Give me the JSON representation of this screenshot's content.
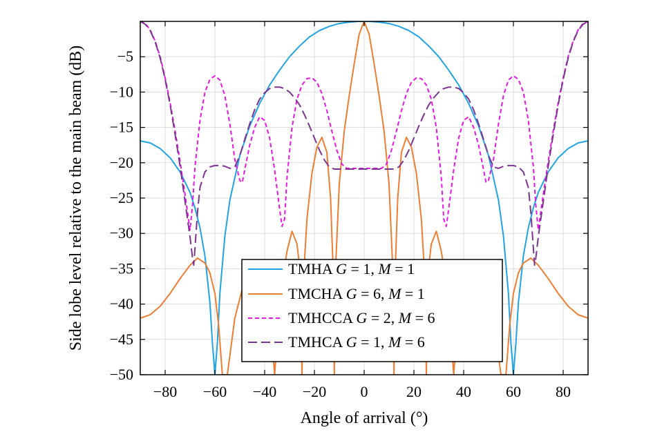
{
  "chart_data": {
    "type": "line",
    "title": "",
    "xlabel": "Angle of arrival (°)",
    "ylabel": "Side lobe level relative to the main beam (dB)",
    "xlim": [
      -90,
      90
    ],
    "ylim": [
      -50,
      0
    ],
    "xticks": [
      -80,
      -60,
      -40,
      -20,
      0,
      20,
      40,
      60,
      80
    ],
    "yticks": [
      -5,
      -10,
      -15,
      -20,
      -25,
      -30,
      -35,
      -40,
      -45,
      -50
    ],
    "xtick_labels": [
      "−80",
      "−60",
      "−40",
      "−20",
      "0",
      "20",
      "40",
      "60",
      "80"
    ],
    "ytick_labels": [
      "−5",
      "−10",
      "−15",
      "−20",
      "−25",
      "−30",
      "−35",
      "−40",
      "−45",
      "−50"
    ],
    "grid": true,
    "legend_position": "bottom-center",
    "series": [
      {
        "name": "TMHA G = 1, M = 1",
        "legend": {
          "prefix": "TMHA ",
          "g_label": "G",
          "g_value": " = 1, ",
          "m_label": "M",
          "m_value": " = 1"
        },
        "color": "#1fa3e6",
        "dash": "solid",
        "x": [
          -90,
          -86,
          -82,
          -78,
          -74,
          -70,
          -68,
          -66,
          -64,
          -62,
          -61,
          -60,
          -59,
          -58,
          -56,
          -54,
          -50,
          -46,
          -42,
          -38,
          -34,
          -30,
          -26,
          -22,
          -18,
          -14,
          -10,
          -6,
          -2,
          0,
          2,
          6,
          10,
          14,
          18,
          22,
          26,
          30,
          34,
          38,
          42,
          46,
          50,
          54,
          56,
          58,
          59,
          60,
          61,
          62,
          64,
          66,
          68,
          70,
          74,
          78,
          82,
          86,
          90
        ],
        "y": [
          -16.9,
          -17.2,
          -18.0,
          -19.3,
          -21.3,
          -24.2,
          -26.4,
          -29.2,
          -33.2,
          -39.8,
          -45.5,
          -50,
          -45.5,
          -38.5,
          -30.4,
          -25.3,
          -19.0,
          -14.8,
          -11.6,
          -9.0,
          -6.9,
          -5.0,
          -3.5,
          -2.2,
          -1.3,
          -0.7,
          -0.3,
          -0.1,
          0,
          0,
          0,
          -0.1,
          -0.3,
          -0.7,
          -1.3,
          -2.2,
          -3.5,
          -5.0,
          -6.9,
          -9.0,
          -11.6,
          -14.8,
          -19.0,
          -25.3,
          -30.4,
          -38.5,
          -45.5,
          -50,
          -45.5,
          -39.8,
          -33.2,
          -29.2,
          -26.4,
          -24.2,
          -21.3,
          -19.3,
          -18.0,
          -17.2,
          -16.9
        ]
      },
      {
        "name": "TMCHA G = 6, M = 1",
        "legend": {
          "prefix": "TMCHA ",
          "g_label": "G",
          "g_value": " = 6, ",
          "m_label": "M",
          "m_value": " = 1"
        },
        "color": "#ed7d31",
        "dash": "solid",
        "x": [
          -90,
          -86,
          -82,
          -78,
          -74,
          -70,
          -67,
          -64,
          -62,
          -60,
          -58.5,
          -57,
          -56,
          -55,
          -52,
          -48,
          -44,
          -41,
          -39,
          -37,
          -36,
          -35,
          -33,
          -31,
          -29,
          -27,
          -25.5,
          -25,
          -24.5,
          -23,
          -21,
          -19,
          -17,
          -15,
          -13.5,
          -12.5,
          -12,
          -11.5,
          -10,
          -8,
          -6,
          -4,
          -2,
          0,
          2,
          4,
          6,
          8,
          10,
          11.5,
          12,
          12.5,
          13.5,
          15,
          17,
          19,
          21,
          23,
          24.5,
          25,
          25.5,
          27,
          29,
          31,
          33,
          35,
          36,
          37,
          39,
          41,
          44,
          48,
          52,
          55,
          56,
          57,
          58.5,
          60,
          62,
          64,
          67,
          70,
          74,
          78,
          82,
          86,
          90
        ],
        "y": [
          -42,
          -41.5,
          -40.3,
          -38.5,
          -36.4,
          -34.5,
          -33.5,
          -34.2,
          -35.6,
          -38.5,
          -43,
          -50,
          -50,
          -50,
          -42,
          -36.5,
          -35,
          -36.5,
          -39.5,
          -45,
          -50,
          -45,
          -37,
          -32.5,
          -29.7,
          -31.5,
          -36,
          -50,
          -37,
          -28,
          -21.5,
          -17.8,
          -16.4,
          -18.5,
          -25,
          -35,
          -50,
          -35,
          -23,
          -15.5,
          -10.5,
          -6.0,
          -1.8,
          0,
          -1.8,
          -6.0,
          -10.5,
          -15.5,
          -23,
          -35,
          -50,
          -35,
          -25,
          -18.5,
          -16.4,
          -17.8,
          -21.5,
          -28,
          -37,
          -50,
          -36,
          -31.5,
          -29.7,
          -32.5,
          -37,
          -45,
          -50,
          -45,
          -39.5,
          -36.5,
          -35,
          -36.5,
          -42,
          -50,
          -50,
          -50,
          -43,
          -38.5,
          -35.6,
          -34.2,
          -33.5,
          -34.5,
          -36.4,
          -38.5,
          -40.3,
          -41.5,
          -42
        ]
      },
      {
        "name": "TMHCCA G = 2, M = 6",
        "legend": {
          "prefix": "TMHCCA ",
          "g_label": "G",
          "g_value": " = 2, ",
          "m_label": "M",
          "m_value": " = 6"
        },
        "color": "#e815e6",
        "dash": "short",
        "x": [
          -90,
          -88,
          -86,
          -84,
          -82,
          -80,
          -78,
          -76,
          -74,
          -72,
          -71,
          -70,
          -69,
          -68,
          -66,
          -64,
          -62,
          -60,
          -58,
          -56,
          -54,
          -52,
          -50,
          -49,
          -48,
          -46,
          -44,
          -42,
          -40,
          -38,
          -36,
          -34,
          -33,
          -32,
          -31,
          -29,
          -27,
          -25,
          -23,
          -21,
          -19,
          -17,
          -15,
          -13,
          -11,
          -9,
          -7,
          -5,
          -3,
          -1,
          0,
          1,
          3,
          5,
          7,
          9,
          11,
          13,
          15,
          17,
          19,
          21,
          23,
          25,
          27,
          29,
          31,
          32,
          33,
          34,
          36,
          38,
          40,
          42,
          44,
          46,
          48,
          49,
          50,
          52,
          54,
          56,
          58,
          60,
          62,
          64,
          66,
          68,
          69,
          70,
          71,
          72,
          74,
          76,
          78,
          80,
          82,
          84,
          86,
          88,
          90
        ],
        "y": [
          0,
          -0.3,
          -1.2,
          -2.8,
          -5.0,
          -8.0,
          -11.5,
          -15.5,
          -19.8,
          -24.5,
          -27,
          -29.5,
          -26,
          -20.5,
          -14,
          -10,
          -8.2,
          -7.7,
          -8.3,
          -10.5,
          -14.5,
          -19.5,
          -22.5,
          -22.8,
          -21,
          -17.5,
          -15,
          -13.5,
          -14,
          -16.5,
          -21,
          -26.5,
          -29,
          -28,
          -22,
          -15,
          -11,
          -9,
          -8.1,
          -8.0,
          -8.6,
          -10.2,
          -12.6,
          -15.5,
          -18.2,
          -20.2,
          -20.8,
          -20.8,
          -20.8,
          -20.8,
          -20.8,
          -20.8,
          -20.8,
          -20.8,
          -20.8,
          -20.2,
          -18.2,
          -15.5,
          -12.6,
          -10.2,
          -8.6,
          -8.0,
          -8.1,
          -9,
          -11,
          -15,
          -22,
          -28,
          -29,
          -26.5,
          -21,
          -16.5,
          -14,
          -13.5,
          -15,
          -17.5,
          -21,
          -22.8,
          -22.5,
          -19.5,
          -14.5,
          -10.5,
          -8.3,
          -7.7,
          -8.2,
          -10,
          -14,
          -20.5,
          -26,
          -29.5,
          -27,
          -24.5,
          -19.8,
          -15.5,
          -11.5,
          -8.0,
          -5.0,
          -2.8,
          -1.2,
          -0.3,
          0
        ]
      },
      {
        "name": "TMHCA G = 1, M = 6",
        "legend": {
          "prefix": "TMHCA ",
          "g_label": "G",
          "g_value": " = 1, ",
          "m_label": "M",
          "m_value": " = 6"
        },
        "color": "#7b3390",
        "dash": "long",
        "x": [
          -90,
          -88,
          -86,
          -84,
          -82,
          -80,
          -78,
          -76,
          -74,
          -72,
          -70,
          -69,
          -68.5,
          -68,
          -67,
          -66,
          -64,
          -62,
          -60,
          -58,
          -56,
          -54,
          -52,
          -50,
          -48,
          -46,
          -44,
          -42,
          -40,
          -38,
          -36,
          -34,
          -32,
          -30,
          -28,
          -26,
          -24,
          -22,
          -20,
          -18,
          -16,
          -14,
          -12,
          -10,
          -8,
          -6,
          -4,
          -2,
          0,
          2,
          4,
          6,
          8,
          10,
          12,
          14,
          16,
          18,
          20,
          22,
          24,
          26,
          28,
          30,
          32,
          34,
          36,
          38,
          40,
          42,
          44,
          46,
          48,
          50,
          52,
          54,
          56,
          58,
          60,
          62,
          64,
          66,
          67,
          68,
          68.5,
          69,
          70,
          72,
          74,
          76,
          78,
          80,
          82,
          84,
          86,
          88,
          90
        ],
        "y": [
          0,
          -0.4,
          -1.3,
          -2.9,
          -5.2,
          -8.2,
          -11.8,
          -16,
          -20.5,
          -25.5,
          -30.5,
          -33.5,
          -34.5,
          -32,
          -27,
          -23.5,
          -21.3,
          -20.6,
          -20.4,
          -20.4,
          -20.5,
          -20.8,
          -20.6,
          -19,
          -16.7,
          -14.5,
          -12.5,
          -11.0,
          -10.1,
          -9.5,
          -9.3,
          -9.3,
          -9.5,
          -10.0,
          -10.8,
          -11.8,
          -13.2,
          -14.8,
          -16.5,
          -18.2,
          -19.6,
          -20.6,
          -20.9,
          -20.9,
          -20.9,
          -20.9,
          -20.9,
          -20.9,
          -20.9,
          -20.9,
          -20.9,
          -20.9,
          -20.9,
          -20.9,
          -20.9,
          -20.6,
          -19.6,
          -18.2,
          -16.5,
          -14.8,
          -13.2,
          -11.8,
          -10.8,
          -10.0,
          -9.5,
          -9.3,
          -9.3,
          -9.5,
          -10.1,
          -11.0,
          -12.5,
          -14.5,
          -16.7,
          -19,
          -20.6,
          -20.8,
          -20.5,
          -20.4,
          -20.4,
          -20.6,
          -21.3,
          -23.5,
          -27,
          -32,
          -34.5,
          -33.5,
          -30.5,
          -25.5,
          -20.5,
          -16,
          -11.8,
          -8.2,
          -5.2,
          -2.9,
          -1.3,
          -0.4,
          0
        ]
      }
    ]
  }
}
